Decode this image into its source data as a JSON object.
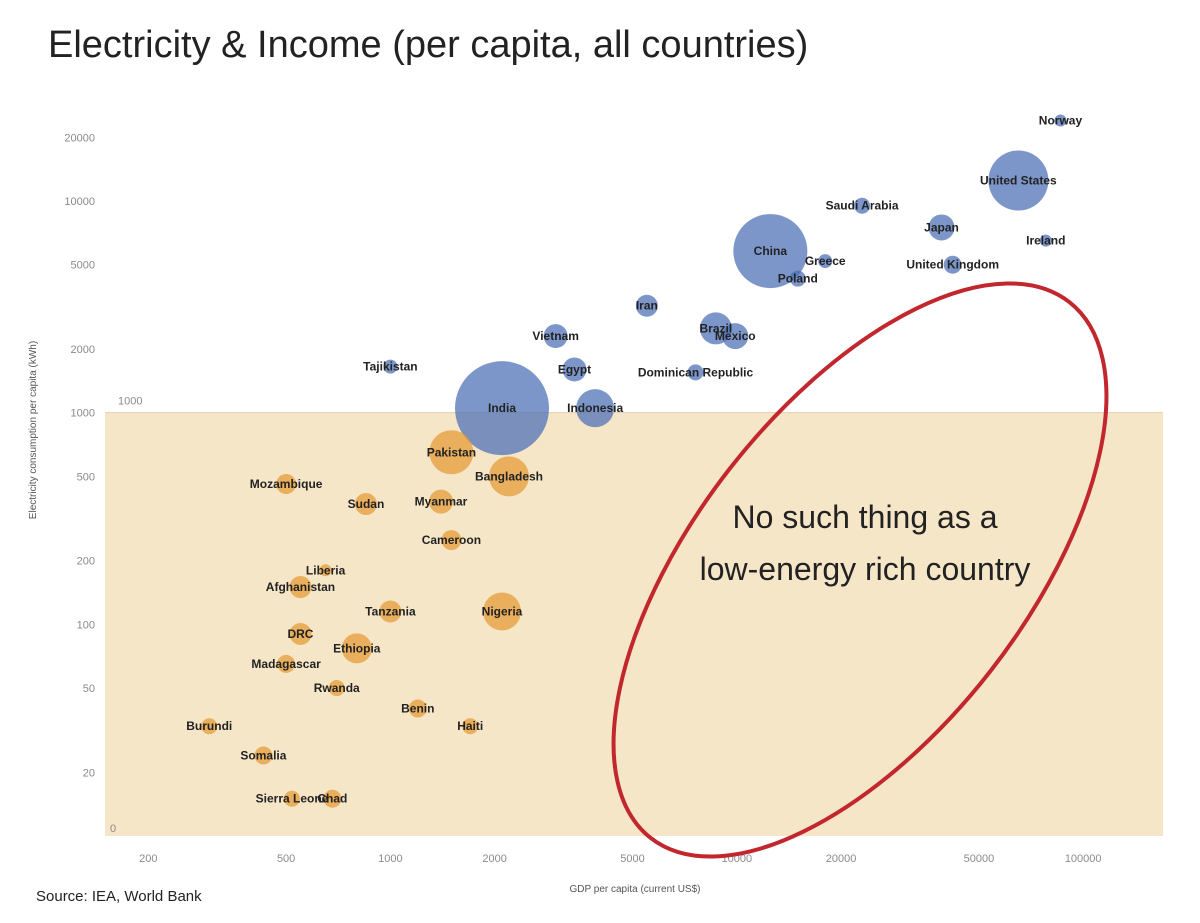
{
  "title": "Electricity & Income (per capita, all countries)",
  "source": "Source: IEA, World Bank",
  "colors": {
    "above_threshold": "#4a6db5",
    "below_threshold": "#e39a33",
    "low_energy_zone": "#f6e6c8",
    "ellipse": "#c1272d"
  },
  "chart_data": {
    "type": "scatter",
    "xscale": "log",
    "yscale": "log",
    "xlabel": "GDP per capita (current US$)",
    "ylabel": "Electricity consumption per capita (kWh)",
    "xlim": [
      150,
      170000
    ],
    "ylim": [
      10,
      30000
    ],
    "x_ticks": [
      200,
      500,
      1000,
      2000,
      5000,
      10000,
      20000,
      50000,
      100000
    ],
    "y_ticks": [
      20,
      50,
      100,
      200,
      500,
      1000,
      2000,
      5000,
      10000,
      20000
    ],
    "threshold_line_value": 1000,
    "threshold_label": "1000",
    "zero_label": "0",
    "annotation": [
      "No such thing as a",
      "low-energy rich country"
    ],
    "points": [
      {
        "label": "Norway",
        "x": 86000,
        "y": 24000,
        "size": 6
      },
      {
        "label": "United States",
        "x": 65000,
        "y": 12500,
        "size": 30
      },
      {
        "label": "Ireland",
        "x": 78000,
        "y": 6500,
        "size": 6
      },
      {
        "label": "Saudi Arabia",
        "x": 23000,
        "y": 9500,
        "size": 8
      },
      {
        "label": "Japan",
        "x": 39000,
        "y": 7500,
        "size": 13
      },
      {
        "label": "United Kingdom",
        "x": 42000,
        "y": 5000,
        "size": 9
      },
      {
        "label": "Greece",
        "x": 18000,
        "y": 5200,
        "size": 7
      },
      {
        "label": "Poland",
        "x": 15000,
        "y": 4300,
        "size": 8
      },
      {
        "label": "China",
        "x": 12500,
        "y": 5800,
        "size": 37
      },
      {
        "label": "Iran",
        "x": 5500,
        "y": 3200,
        "size": 11
      },
      {
        "label": "Vietnam",
        "x": 3000,
        "y": 2300,
        "size": 12
      },
      {
        "label": "Brazil",
        "x": 8700,
        "y": 2500,
        "size": 16
      },
      {
        "label": "Mexico",
        "x": 9900,
        "y": 2300,
        "size": 13
      },
      {
        "label": "Egypt",
        "x": 3400,
        "y": 1600,
        "size": 12
      },
      {
        "label": "Dominican Republic",
        "x": 7600,
        "y": 1550,
        "size": 8
      },
      {
        "label": "Indonesia",
        "x": 3900,
        "y": 1050,
        "size": 19
      },
      {
        "label": "Tajikistan",
        "x": 1000,
        "y": 1650,
        "size": 7
      },
      {
        "label": "India",
        "x": 2100,
        "y": 1050,
        "size": 47
      },
      {
        "label": "Pakistan",
        "x": 1500,
        "y": 650,
        "size": 22
      },
      {
        "label": "Bangladesh",
        "x": 2200,
        "y": 500,
        "size": 20
      },
      {
        "label": "Mozambique",
        "x": 500,
        "y": 460,
        "size": 10
      },
      {
        "label": "Sudan",
        "x": 850,
        "y": 370,
        "size": 11
      },
      {
        "label": "Myanmar",
        "x": 1400,
        "y": 380,
        "size": 12
      },
      {
        "label": "Cameroon",
        "x": 1500,
        "y": 250,
        "size": 10
      },
      {
        "label": "Liberia",
        "x": 650,
        "y": 180,
        "size": 6
      },
      {
        "label": "Afghanistan",
        "x": 550,
        "y": 150,
        "size": 11
      },
      {
        "label": "Tanzania",
        "x": 1000,
        "y": 115,
        "size": 11
      },
      {
        "label": "Nigeria",
        "x": 2100,
        "y": 115,
        "size": 19
      },
      {
        "label": "DRC",
        "x": 550,
        "y": 90,
        "size": 11
      },
      {
        "label": "Ethiopia",
        "x": 800,
        "y": 77,
        "size": 15
      },
      {
        "label": "Madagascar",
        "x": 500,
        "y": 65,
        "size": 9
      },
      {
        "label": "Rwanda",
        "x": 700,
        "y": 50,
        "size": 8
      },
      {
        "label": "Benin",
        "x": 1200,
        "y": 40,
        "size": 9
      },
      {
        "label": "Haiti",
        "x": 1700,
        "y": 33,
        "size": 8
      },
      {
        "label": "Burundi",
        "x": 300,
        "y": 33,
        "size": 8
      },
      {
        "label": "Somalia",
        "x": 430,
        "y": 24,
        "size": 9
      },
      {
        "label": "Sierra Leone",
        "x": 520,
        "y": 15,
        "size": 8
      },
      {
        "label": "Chad",
        "x": 680,
        "y": 15,
        "size": 9
      }
    ]
  }
}
